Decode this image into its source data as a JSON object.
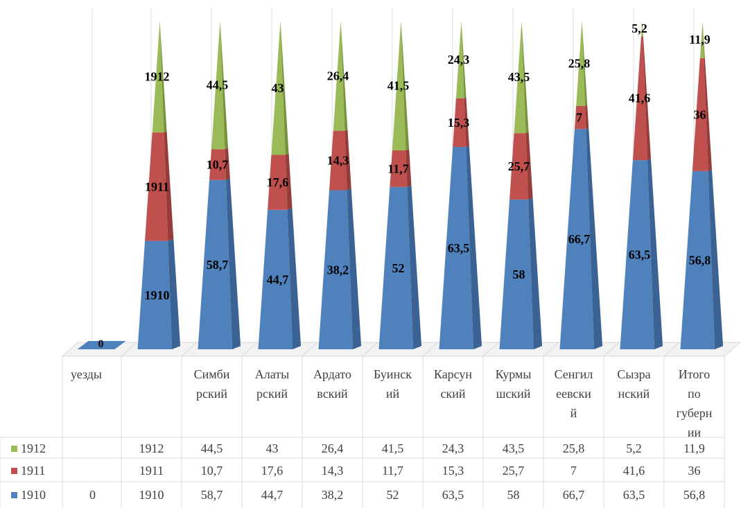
{
  "chart_data": {
    "type": "bar",
    "variant": "stacked-3d-pyramid",
    "title": "",
    "xlabel": "",
    "ylabel": "",
    "grid": false,
    "legend": "in-data-table",
    "categories": [
      "уезды",
      "",
      "Симбирский",
      "Алатырский",
      "Ардатовский",
      "Буинский",
      "Карсунский",
      "Курмышский",
      "Сенгилеевский",
      "Сызранский",
      "Итого по губернии"
    ],
    "category_labels_wrapped": [
      [
        "уезды"
      ],
      [],
      [
        "Симби",
        "рский"
      ],
      [
        "Алаты",
        "рский"
      ],
      [
        "Ардато",
        "вский"
      ],
      [
        "Буинск",
        "ий"
      ],
      [
        "Карсун",
        "ский"
      ],
      [
        "Курмы",
        "шский"
      ],
      [
        "Сенгил",
        "еевски",
        "й"
      ],
      [
        "Сызра",
        "нский"
      ],
      [
        "Итого",
        "по",
        "губерн",
        "ии"
      ]
    ],
    "series": [
      {
        "name": "1910",
        "color": "#4F81BD",
        "values": [
          0,
          1910,
          58.7,
          44.7,
          38.2,
          52,
          63.5,
          58,
          66.7,
          63.5,
          56.8
        ],
        "labels": [
          "0",
          "1910",
          "58,7",
          "44,7",
          "38,2",
          "52",
          "63,5",
          "58",
          "66,7",
          "63,5",
          "56,8"
        ]
      },
      {
        "name": "1911",
        "color": "#C0504D",
        "values": [
          null,
          1911,
          10.7,
          17.6,
          14.3,
          11.7,
          15.3,
          25.7,
          7,
          41.6,
          36
        ],
        "labels": [
          "",
          "1911",
          "10,7",
          "17,6",
          "14,3",
          "11,7",
          "15,3",
          "25,7",
          "7",
          "41,6",
          "36"
        ]
      },
      {
        "name": "1912",
        "color": "#9BBB59",
        "values": [
          null,
          1912,
          44.5,
          43,
          26.4,
          41.5,
          24.3,
          43.5,
          25.8,
          5.2,
          11.9
        ],
        "labels": [
          "",
          "1912",
          "44,5",
          "43",
          "26,4",
          "41,5",
          "24,3",
          "43,5",
          "25,8",
          "5,2",
          "11,9"
        ]
      }
    ]
  }
}
